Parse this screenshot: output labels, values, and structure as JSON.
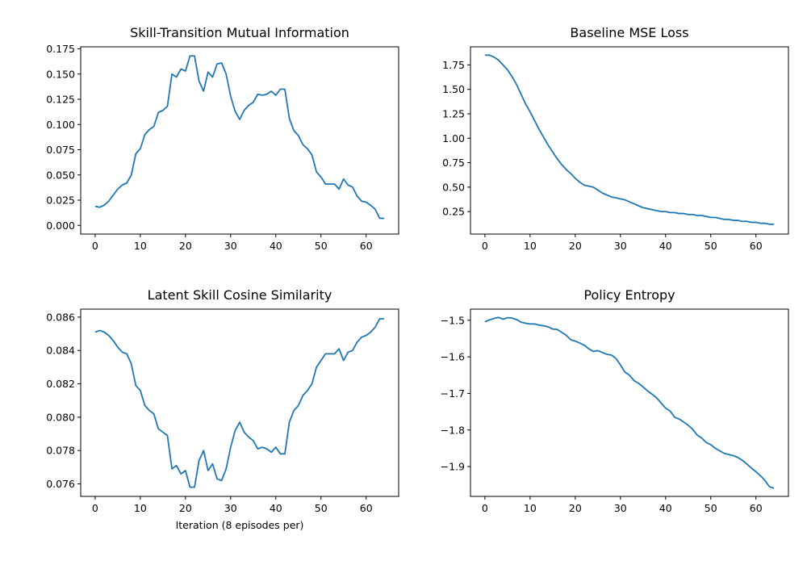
{
  "chart_data": [
    {
      "type": "line",
      "title": "Skill-Transition Mutual Information",
      "xlabel": "",
      "ylabel": "",
      "xlim": [
        -3.2,
        67.2
      ],
      "ylim": [
        -0.0086,
        0.177
      ],
      "xticks": [
        0,
        10,
        20,
        30,
        40,
        50,
        60
      ],
      "xtick_labels": [
        "0",
        "10",
        "20",
        "30",
        "40",
        "50",
        "60"
      ],
      "yticks": [
        0.0,
        0.025,
        0.05,
        0.075,
        0.1,
        0.125,
        0.15,
        0.175
      ],
      "ytick_labels": [
        "0.000",
        "0.025",
        "0.050",
        "0.075",
        "0.100",
        "0.125",
        "0.150",
        "0.175"
      ],
      "grid": false,
      "color": "#1f77b4",
      "x": [
        0,
        1,
        2,
        3,
        4,
        5,
        6,
        7,
        8,
        9,
        10,
        11,
        12,
        13,
        14,
        15,
        16,
        17,
        18,
        19,
        20,
        21,
        22,
        23,
        24,
        25,
        26,
        27,
        28,
        29,
        30,
        31,
        32,
        33,
        34,
        35,
        36,
        37,
        38,
        39,
        40,
        41,
        42,
        43,
        44,
        45,
        46,
        47,
        48,
        49,
        50,
        51,
        52,
        53,
        54,
        55,
        56,
        57,
        58,
        59,
        60,
        61,
        62,
        63,
        64
      ],
      "values": [
        0.019,
        0.018,
        0.02,
        0.024,
        0.03,
        0.036,
        0.04,
        0.042,
        0.05,
        0.071,
        0.076,
        0.09,
        0.095,
        0.098,
        0.112,
        0.114,
        0.118,
        0.15,
        0.147,
        0.155,
        0.153,
        0.168,
        0.168,
        0.143,
        0.133,
        0.152,
        0.147,
        0.16,
        0.161,
        0.15,
        0.128,
        0.113,
        0.105,
        0.114,
        0.119,
        0.122,
        0.13,
        0.129,
        0.13,
        0.133,
        0.129,
        0.135,
        0.135,
        0.106,
        0.094,
        0.089,
        0.08,
        0.076,
        0.07,
        0.053,
        0.048,
        0.041,
        0.041,
        0.041,
        0.036,
        0.046,
        0.04,
        0.038,
        0.029,
        0.024,
        0.023,
        0.02,
        0.016,
        0.007,
        0.007
      ]
    },
    {
      "type": "line",
      "title": "Baseline MSE Loss",
      "xlabel": "",
      "ylabel": "",
      "xlim": [
        -3.2,
        67.2
      ],
      "ylim": [
        0.02,
        1.935
      ],
      "xticks": [
        0,
        10,
        20,
        30,
        40,
        50,
        60
      ],
      "xtick_labels": [
        "0",
        "10",
        "20",
        "30",
        "40",
        "50",
        "60"
      ],
      "yticks": [
        0.25,
        0.5,
        0.75,
        1.0,
        1.25,
        1.5,
        1.75
      ],
      "ytick_labels": [
        "0.25",
        "0.50",
        "0.75",
        "1.00",
        "1.25",
        "1.50",
        "1.75"
      ],
      "grid": false,
      "color": "#1f77b4",
      "x": [
        0,
        1,
        2,
        3,
        4,
        5,
        6,
        7,
        8,
        9,
        10,
        11,
        12,
        13,
        14,
        15,
        16,
        17,
        18,
        19,
        20,
        21,
        22,
        23,
        24,
        25,
        26,
        27,
        28,
        29,
        30,
        31,
        32,
        33,
        34,
        35,
        36,
        37,
        38,
        39,
        40,
        41,
        42,
        43,
        44,
        45,
        46,
        47,
        48,
        49,
        50,
        51,
        52,
        53,
        54,
        55,
        56,
        57,
        58,
        59,
        60,
        61,
        62,
        63,
        64
      ],
      "values": [
        1.85,
        1.85,
        1.83,
        1.8,
        1.75,
        1.7,
        1.63,
        1.55,
        1.45,
        1.35,
        1.27,
        1.18,
        1.09,
        1.01,
        0.93,
        0.86,
        0.79,
        0.73,
        0.68,
        0.64,
        0.59,
        0.55,
        0.52,
        0.51,
        0.5,
        0.47,
        0.44,
        0.42,
        0.4,
        0.39,
        0.38,
        0.37,
        0.35,
        0.33,
        0.31,
        0.29,
        0.28,
        0.27,
        0.26,
        0.25,
        0.25,
        0.24,
        0.24,
        0.23,
        0.23,
        0.22,
        0.22,
        0.21,
        0.21,
        0.2,
        0.19,
        0.19,
        0.18,
        0.17,
        0.17,
        0.16,
        0.16,
        0.15,
        0.15,
        0.14,
        0.14,
        0.13,
        0.13,
        0.12,
        0.12
      ]
    },
    {
      "type": "line",
      "title": "Latent Skill Cosine Similarity",
      "xlabel": "Iteration (8 episodes per)",
      "ylabel": "",
      "xlim": [
        -3.2,
        67.2
      ],
      "ylim": [
        0.07525,
        0.08648
      ],
      "xticks": [
        0,
        10,
        20,
        30,
        40,
        50,
        60
      ],
      "xtick_labels": [
        "0",
        "10",
        "20",
        "30",
        "40",
        "50",
        "60"
      ],
      "yticks": [
        0.076,
        0.078,
        0.08,
        0.082,
        0.084,
        0.086
      ],
      "ytick_labels": [
        "0.076",
        "0.078",
        "0.080",
        "0.082",
        "0.084",
        "0.086"
      ],
      "grid": false,
      "color": "#1f77b4",
      "x": [
        0,
        1,
        2,
        3,
        4,
        5,
        6,
        7,
        8,
        9,
        10,
        11,
        12,
        13,
        14,
        15,
        16,
        17,
        18,
        19,
        20,
        21,
        22,
        23,
        24,
        25,
        26,
        27,
        28,
        29,
        30,
        31,
        32,
        33,
        34,
        35,
        36,
        37,
        38,
        39,
        40,
        41,
        42,
        43,
        44,
        45,
        46,
        47,
        48,
        49,
        50,
        51,
        52,
        53,
        54,
        55,
        56,
        57,
        58,
        59,
        60,
        61,
        62,
        63,
        64
      ],
      "values": [
        0.0851,
        0.0852,
        0.0851,
        0.0849,
        0.0846,
        0.0842,
        0.0839,
        0.0838,
        0.0832,
        0.0819,
        0.0816,
        0.0807,
        0.0804,
        0.0802,
        0.0793,
        0.0791,
        0.0789,
        0.0769,
        0.0771,
        0.0766,
        0.0768,
        0.0758,
        0.0758,
        0.0774,
        0.078,
        0.0768,
        0.0772,
        0.0763,
        0.0762,
        0.0769,
        0.0782,
        0.0792,
        0.0797,
        0.0791,
        0.0788,
        0.0786,
        0.0781,
        0.0782,
        0.0781,
        0.0779,
        0.0782,
        0.0778,
        0.0778,
        0.0797,
        0.0804,
        0.0807,
        0.0813,
        0.0816,
        0.082,
        0.083,
        0.0834,
        0.0838,
        0.0838,
        0.0838,
        0.0841,
        0.0834,
        0.0839,
        0.084,
        0.0845,
        0.0848,
        0.0849,
        0.0851,
        0.0854,
        0.0859,
        0.0859
      ]
    },
    {
      "type": "line",
      "title": "Policy Entropy",
      "xlabel": "",
      "ylabel": "",
      "xlim": [
        -3.2,
        67.2
      ],
      "ylim": [
        -1.9815,
        -1.4695
      ],
      "xticks": [
        0,
        10,
        20,
        30,
        40,
        50,
        60
      ],
      "xtick_labels": [
        "0",
        "10",
        "20",
        "30",
        "40",
        "50",
        "60"
      ],
      "yticks": [
        -1.9,
        -1.8,
        -1.7,
        -1.6,
        -1.5
      ],
      "ytick_labels": [
        "−1.9",
        "−1.8",
        "−1.7",
        "−1.6",
        "−1.5"
      ],
      "grid": false,
      "color": "#1f77b4",
      "x": [
        0,
        1,
        2,
        3,
        4,
        5,
        6,
        7,
        8,
        9,
        10,
        11,
        12,
        13,
        14,
        15,
        16,
        17,
        18,
        19,
        20,
        21,
        22,
        23,
        24,
        25,
        26,
        27,
        28,
        29,
        30,
        31,
        32,
        33,
        34,
        35,
        36,
        37,
        38,
        39,
        40,
        41,
        42,
        43,
        44,
        45,
        46,
        47,
        48,
        49,
        50,
        51,
        52,
        53,
        54,
        55,
        56,
        57,
        58,
        59,
        60,
        61,
        62,
        63,
        64
      ],
      "values": [
        -1.504,
        -1.499,
        -1.495,
        -1.492,
        -1.497,
        -1.493,
        -1.494,
        -1.498,
        -1.505,
        -1.508,
        -1.51,
        -1.51,
        -1.513,
        -1.515,
        -1.518,
        -1.524,
        -1.525,
        -1.533,
        -1.541,
        -1.553,
        -1.557,
        -1.562,
        -1.568,
        -1.578,
        -1.585,
        -1.583,
        -1.588,
        -1.593,
        -1.595,
        -1.604,
        -1.622,
        -1.642,
        -1.65,
        -1.665,
        -1.672,
        -1.682,
        -1.693,
        -1.702,
        -1.712,
        -1.726,
        -1.74,
        -1.748,
        -1.765,
        -1.77,
        -1.778,
        -1.787,
        -1.798,
        -1.814,
        -1.822,
        -1.834,
        -1.84,
        -1.85,
        -1.857,
        -1.864,
        -1.867,
        -1.87,
        -1.875,
        -1.883,
        -1.893,
        -1.904,
        -1.914,
        -1.925,
        -1.938,
        -1.955,
        -1.959
      ]
    }
  ]
}
